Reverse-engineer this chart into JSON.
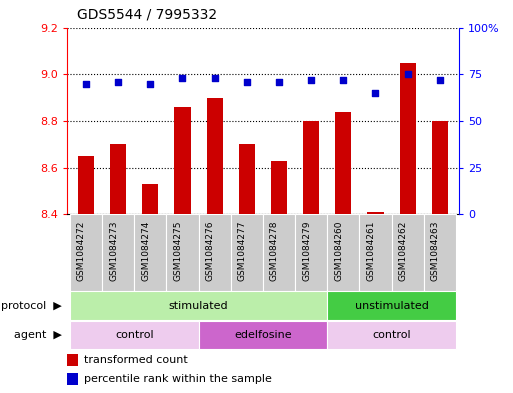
{
  "title": "GDS5544 / 7995332",
  "samples": [
    "GSM1084272",
    "GSM1084273",
    "GSM1084274",
    "GSM1084275",
    "GSM1084276",
    "GSM1084277",
    "GSM1084278",
    "GSM1084279",
    "GSM1084260",
    "GSM1084261",
    "GSM1084262",
    "GSM1084263"
  ],
  "transformed_count": [
    8.65,
    8.7,
    8.53,
    8.86,
    8.9,
    8.7,
    8.63,
    8.8,
    8.84,
    8.41,
    9.05,
    8.8
  ],
  "percentile_rank": [
    70,
    71,
    70,
    73,
    73,
    71,
    71,
    72,
    72,
    65,
    75,
    72
  ],
  "ylim_left": [
    8.4,
    9.2
  ],
  "ylim_right": [
    0,
    100
  ],
  "yticks_left": [
    8.4,
    8.6,
    8.8,
    9.0,
    9.2
  ],
  "yticks_right": [
    0,
    25,
    50,
    75,
    100
  ],
  "ytick_labels_right": [
    "0",
    "25",
    "50",
    "75",
    "100%"
  ],
  "bar_color": "#cc0000",
  "scatter_color": "#0000cc",
  "bar_width": 0.5,
  "protocol_groups": [
    {
      "label": "stimulated",
      "start": 0,
      "end": 8,
      "color": "#bbeeaa"
    },
    {
      "label": "unstimulated",
      "start": 8,
      "end": 12,
      "color": "#44cc44"
    }
  ],
  "agent_groups": [
    {
      "label": "control",
      "start": 0,
      "end": 4,
      "color": "#eeccee"
    },
    {
      "label": "edelfosine",
      "start": 4,
      "end": 8,
      "color": "#cc66cc"
    },
    {
      "label": "control",
      "start": 8,
      "end": 12,
      "color": "#eeccee"
    }
  ],
  "protocol_label": "protocol",
  "agent_label": "agent",
  "legend_red": "transformed count",
  "legend_blue": "percentile rank within the sample",
  "sample_label_bg": "#cccccc",
  "title_fontsize": 10,
  "tick_fontsize": 8,
  "label_fontsize": 8,
  "annotation_fontsize": 8,
  "sample_fontsize": 6.5
}
